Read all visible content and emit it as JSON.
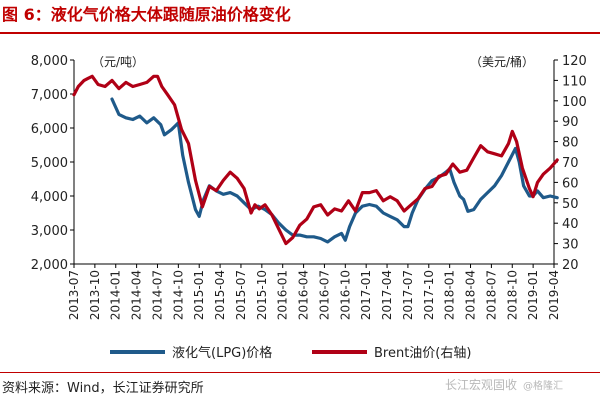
{
  "header": {
    "title": "图 6：液化气价格大体跟随原油价格变化"
  },
  "footer": {
    "source": "资料来源：Wind，长江证券研究所",
    "watermark": "长江宏观固收",
    "watermark_sub": "@格隆汇"
  },
  "colors": {
    "lpg": "#1f5a8a",
    "brent": "#b00016",
    "accent": "#c00000"
  },
  "chart_data": {
    "type": "line",
    "left_axis_unit": "（元/吨）",
    "right_axis_unit": "（美元/桶）",
    "ylim_left": [
      2000,
      8000
    ],
    "ylim_right": [
      20,
      120
    ],
    "left_ticks": [
      "2,000",
      "3,000",
      "4,000",
      "5,000",
      "6,000",
      "7,000",
      "8,000"
    ],
    "right_ticks": [
      "20",
      "30",
      "40",
      "50",
      "60",
      "70",
      "80",
      "90",
      "100",
      "110",
      "120"
    ],
    "x_ticks": [
      "2013-07",
      "2013-10",
      "2014-01",
      "2014-04",
      "2014-07",
      "2014-10",
      "2015-01",
      "2015-04",
      "2015-07",
      "2015-10",
      "2016-01",
      "2016-04",
      "2016-07",
      "2016-10",
      "2017-01",
      "2017-04",
      "2017-07",
      "2017-10",
      "2018-01",
      "2018-04",
      "2018-07",
      "2018-10",
      "2019-01",
      "2019-04"
    ],
    "legend": "bottom",
    "grid": false,
    "series": [
      {
        "name": "液化气(LPG)价格",
        "axis": "left",
        "points": [
          [
            "2013-12-15",
            6850
          ],
          [
            "2014-01-15",
            6400
          ],
          [
            "2014-02-15",
            6300
          ],
          [
            "2014-03-15",
            6250
          ],
          [
            "2014-04-15",
            6350
          ],
          [
            "2014-05-15",
            6150
          ],
          [
            "2014-06-15",
            6300
          ],
          [
            "2014-07-15",
            6100
          ],
          [
            "2014-08-01",
            5800
          ],
          [
            "2014-09-01",
            5950
          ],
          [
            "2014-10-01",
            6150
          ],
          [
            "2014-10-20",
            5200
          ],
          [
            "2014-11-15",
            4400
          ],
          [
            "2014-12-15",
            3600
          ],
          [
            "2015-01-01",
            3400
          ],
          [
            "2015-01-20",
            3900
          ],
          [
            "2015-02-15",
            4300
          ],
          [
            "2015-03-15",
            4150
          ],
          [
            "2015-04-15",
            4050
          ],
          [
            "2015-05-15",
            4100
          ],
          [
            "2015-06-15",
            4000
          ],
          [
            "2015-07-15",
            3800
          ],
          [
            "2015-08-15",
            3600
          ],
          [
            "2015-09-15",
            3700
          ],
          [
            "2015-10-15",
            3600
          ],
          [
            "2015-11-15",
            3450
          ],
          [
            "2015-12-15",
            3200
          ],
          [
            "2016-01-15",
            3000
          ],
          [
            "2016-02-15",
            2850
          ],
          [
            "2016-03-15",
            2850
          ],
          [
            "2016-04-15",
            2800
          ],
          [
            "2016-05-15",
            2800
          ],
          [
            "2016-06-15",
            2750
          ],
          [
            "2016-07-15",
            2650
          ],
          [
            "2016-08-15",
            2800
          ],
          [
            "2016-09-15",
            2900
          ],
          [
            "2016-10-01",
            2700
          ],
          [
            "2016-10-20",
            3100
          ],
          [
            "2016-11-15",
            3500
          ],
          [
            "2016-12-15",
            3700
          ],
          [
            "2017-01-15",
            3750
          ],
          [
            "2017-02-15",
            3700
          ],
          [
            "2017-03-15",
            3500
          ],
          [
            "2017-04-15",
            3400
          ],
          [
            "2017-05-15",
            3300
          ],
          [
            "2017-06-15",
            3100
          ],
          [
            "2017-07-01",
            3100
          ],
          [
            "2017-07-20",
            3500
          ],
          [
            "2017-08-15",
            3900
          ],
          [
            "2017-09-15",
            4200
          ],
          [
            "2017-10-15",
            4450
          ],
          [
            "2017-11-15",
            4550
          ],
          [
            "2017-12-15",
            4700
          ],
          [
            "2018-01-01",
            4800
          ],
          [
            "2018-01-20",
            4400
          ],
          [
            "2018-02-15",
            4000
          ],
          [
            "2018-03-01",
            3900
          ],
          [
            "2018-03-20",
            3550
          ],
          [
            "2018-04-15",
            3600
          ],
          [
            "2018-05-15",
            3900
          ],
          [
            "2018-06-15",
            4100
          ],
          [
            "2018-07-15",
            4300
          ],
          [
            "2018-08-15",
            4600
          ],
          [
            "2018-09-15",
            5000
          ],
          [
            "2018-10-15",
            5400
          ],
          [
            "2018-11-01",
            5000
          ],
          [
            "2018-11-20",
            4300
          ],
          [
            "2018-12-15",
            4000
          ],
          [
            "2019-01-01",
            4000
          ],
          [
            "2019-01-20",
            4150
          ],
          [
            "2019-02-15",
            3950
          ],
          [
            "2019-03-15",
            4000
          ],
          [
            "2019-04-15",
            3950
          ]
        ]
      },
      {
        "name": "Brent油价(右轴)",
        "axis": "right",
        "points": [
          [
            "2013-07-01",
            103
          ],
          [
            "2013-07-20",
            107
          ],
          [
            "2013-08-15",
            110
          ],
          [
            "2013-09-01",
            111
          ],
          [
            "2013-09-20",
            112
          ],
          [
            "2013-10-15",
            108
          ],
          [
            "2013-11-15",
            107
          ],
          [
            "2013-12-15",
            110
          ],
          [
            "2014-01-15",
            106
          ],
          [
            "2014-02-15",
            109
          ],
          [
            "2014-03-15",
            107
          ],
          [
            "2014-04-15",
            108
          ],
          [
            "2014-05-15",
            109
          ],
          [
            "2014-06-15",
            112
          ],
          [
            "2014-07-01",
            112
          ],
          [
            "2014-07-20",
            107
          ],
          [
            "2014-08-15",
            103
          ],
          [
            "2014-09-15",
            98
          ],
          [
            "2014-10-15",
            86
          ],
          [
            "2014-11-15",
            79
          ],
          [
            "2014-12-15",
            61
          ],
          [
            "2015-01-15",
            48
          ],
          [
            "2015-02-15",
            58
          ],
          [
            "2015-03-15",
            56
          ],
          [
            "2015-04-15",
            61
          ],
          [
            "2015-05-15",
            65
          ],
          [
            "2015-06-15",
            62
          ],
          [
            "2015-07-15",
            57
          ],
          [
            "2015-08-15",
            45
          ],
          [
            "2015-09-01",
            49
          ],
          [
            "2015-09-20",
            47
          ],
          [
            "2015-10-15",
            49
          ],
          [
            "2015-11-15",
            44
          ],
          [
            "2015-12-15",
            37
          ],
          [
            "2016-01-15",
            30
          ],
          [
            "2016-02-15",
            33
          ],
          [
            "2016-03-15",
            39
          ],
          [
            "2016-04-15",
            42
          ],
          [
            "2016-05-15",
            48
          ],
          [
            "2016-06-15",
            49
          ],
          [
            "2016-07-15",
            44
          ],
          [
            "2016-08-15",
            47
          ],
          [
            "2016-09-15",
            46
          ],
          [
            "2016-10-15",
            51
          ],
          [
            "2016-11-15",
            46
          ],
          [
            "2016-12-15",
            55
          ],
          [
            "2017-01-15",
            55
          ],
          [
            "2017-02-15",
            56
          ],
          [
            "2017-03-15",
            51
          ],
          [
            "2017-04-15",
            53
          ],
          [
            "2017-05-15",
            51
          ],
          [
            "2017-06-15",
            46
          ],
          [
            "2017-07-15",
            49
          ],
          [
            "2017-08-15",
            52
          ],
          [
            "2017-09-15",
            57
          ],
          [
            "2017-10-15",
            58
          ],
          [
            "2017-11-15",
            63
          ],
          [
            "2017-12-15",
            64
          ],
          [
            "2018-01-15",
            69
          ],
          [
            "2018-02-15",
            65
          ],
          [
            "2018-03-15",
            66
          ],
          [
            "2018-04-15",
            72
          ],
          [
            "2018-05-15",
            78
          ],
          [
            "2018-06-15",
            75
          ],
          [
            "2018-07-15",
            74
          ],
          [
            "2018-08-15",
            73
          ],
          [
            "2018-09-15",
            79
          ],
          [
            "2018-10-01",
            85
          ],
          [
            "2018-10-20",
            80
          ],
          [
            "2018-11-15",
            67
          ],
          [
            "2018-12-15",
            57
          ],
          [
            "2019-01-01",
            53
          ],
          [
            "2019-01-20",
            60
          ],
          [
            "2019-02-15",
            64
          ],
          [
            "2019-03-15",
            67
          ],
          [
            "2019-04-15",
            71
          ]
        ]
      }
    ]
  }
}
